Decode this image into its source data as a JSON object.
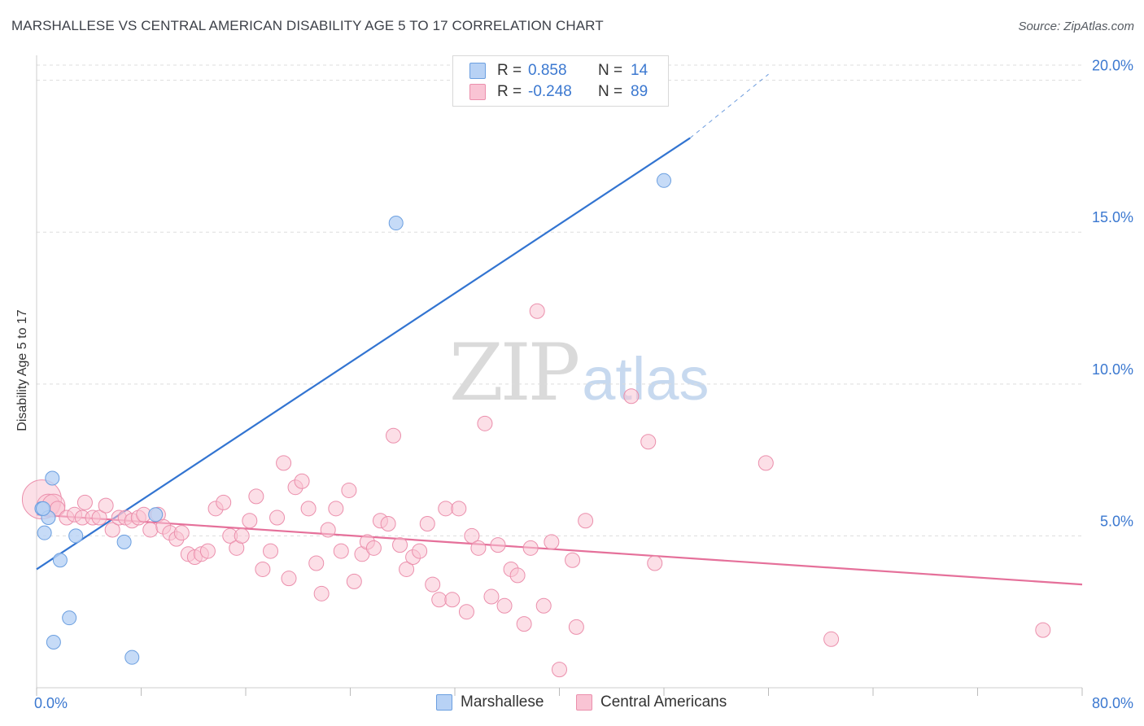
{
  "header": {
    "title": "MARSHALLESE VS CENTRAL AMERICAN DISABILITY AGE 5 TO 17 CORRELATION CHART",
    "source": "Source: ZipAtlas.com"
  },
  "watermark": {
    "zip": "ZIP",
    "atlas": "atlas"
  },
  "legend": {
    "rows": [
      {
        "r_label": "R =",
        "r_value": "0.858",
        "n_label": "N =",
        "n_value": "14"
      },
      {
        "r_label": "R =",
        "r_value": "-0.248",
        "n_label": "N =",
        "n_value": "89"
      }
    ]
  },
  "bottom_legend": {
    "items": [
      "Marshallese",
      "Central Americans"
    ]
  },
  "colors": {
    "marshallese_fill": "#b8d2f5",
    "marshallese_stroke": "#6b9fe0",
    "marshallese_line": "#3274d1",
    "central_fill": "#f9c4d4",
    "central_stroke": "#eb8fac",
    "central_line": "#e5709a",
    "tick_label": "#3b78d0",
    "grid": "#dddddd"
  },
  "chart_data": {
    "type": "scatter",
    "title": "MARSHALLESE VS CENTRAL AMERICAN DISABILITY AGE 5 TO 17 CORRELATION CHART",
    "xlabel": "",
    "ylabel": "Disability Age 5 to 17",
    "xlim": [
      0,
      80
    ],
    "ylim": [
      0,
      20.5
    ],
    "x_tick_labels": [
      "0.0%",
      "80.0%"
    ],
    "y_ticks": [
      5,
      10,
      15,
      20
    ],
    "y_tick_labels": [
      "5.0%",
      "10.0%",
      "15.0%",
      "20.0%"
    ],
    "grid": true,
    "legend_position": "top-center",
    "series": [
      {
        "name": "Marshallese",
        "r": 0.858,
        "n": 14,
        "points": [
          [
            0.4,
            5.9
          ],
          [
            0.6,
            5.1
          ],
          [
            0.9,
            5.6
          ],
          [
            1.2,
            6.9
          ],
          [
            1.3,
            1.5
          ],
          [
            1.8,
            4.2
          ],
          [
            2.5,
            2.3
          ],
          [
            3.0,
            5.0
          ],
          [
            6.7,
            4.8
          ],
          [
            7.3,
            1.0
          ],
          [
            9.1,
            5.7
          ],
          [
            27.5,
            15.3
          ],
          [
            48.0,
            16.7
          ],
          [
            0.5,
            5.9
          ]
        ],
        "trend": {
          "x": [
            0,
            50
          ],
          "y": [
            3.9,
            18.1
          ],
          "extended": {
            "x": [
              50,
              56
            ],
            "y": [
              18.1,
              20.2
            ]
          }
        }
      },
      {
        "name": "Central Americans",
        "r": -0.248,
        "n": 89,
        "points": [
          [
            0.4,
            6.2
          ],
          [
            0.9,
            6.0
          ],
          [
            1.3,
            6.0
          ],
          [
            1.6,
            5.9
          ],
          [
            2.3,
            5.6
          ],
          [
            2.9,
            5.7
          ],
          [
            3.5,
            5.6
          ],
          [
            3.7,
            6.1
          ],
          [
            4.3,
            5.6
          ],
          [
            4.8,
            5.6
          ],
          [
            5.3,
            6.0
          ],
          [
            5.8,
            5.2
          ],
          [
            6.3,
            5.6
          ],
          [
            6.8,
            5.6
          ],
          [
            7.3,
            5.5
          ],
          [
            7.8,
            5.6
          ],
          [
            8.2,
            5.7
          ],
          [
            8.7,
            5.2
          ],
          [
            9.3,
            5.7
          ],
          [
            9.7,
            5.3
          ],
          [
            10.2,
            5.1
          ],
          [
            10.7,
            4.9
          ],
          [
            11.1,
            5.1
          ],
          [
            11.6,
            4.4
          ],
          [
            12.1,
            4.3
          ],
          [
            12.6,
            4.4
          ],
          [
            13.1,
            4.5
          ],
          [
            13.7,
            5.9
          ],
          [
            14.3,
            6.1
          ],
          [
            14.8,
            5.0
          ],
          [
            15.3,
            4.6
          ],
          [
            15.7,
            5.0
          ],
          [
            16.3,
            5.5
          ],
          [
            16.8,
            6.3
          ],
          [
            17.3,
            3.9
          ],
          [
            17.9,
            4.5
          ],
          [
            18.4,
            5.6
          ],
          [
            18.9,
            7.4
          ],
          [
            19.3,
            3.6
          ],
          [
            19.8,
            6.6
          ],
          [
            20.3,
            6.8
          ],
          [
            20.8,
            5.9
          ],
          [
            21.4,
            4.1
          ],
          [
            21.8,
            3.1
          ],
          [
            22.3,
            5.2
          ],
          [
            22.9,
            5.9
          ],
          [
            23.3,
            4.5
          ],
          [
            23.9,
            6.5
          ],
          [
            24.3,
            3.5
          ],
          [
            24.9,
            4.4
          ],
          [
            25.3,
            4.8
          ],
          [
            25.8,
            4.6
          ],
          [
            26.3,
            5.5
          ],
          [
            26.9,
            5.4
          ],
          [
            27.3,
            8.3
          ],
          [
            27.8,
            4.7
          ],
          [
            28.3,
            3.9
          ],
          [
            28.8,
            4.3
          ],
          [
            29.3,
            4.5
          ],
          [
            29.9,
            5.4
          ],
          [
            30.3,
            3.4
          ],
          [
            30.8,
            2.9
          ],
          [
            31.3,
            5.9
          ],
          [
            31.8,
            2.9
          ],
          [
            32.3,
            5.9
          ],
          [
            32.9,
            2.5
          ],
          [
            33.3,
            5.0
          ],
          [
            33.8,
            4.6
          ],
          [
            34.3,
            8.7
          ],
          [
            34.8,
            3.0
          ],
          [
            35.3,
            4.7
          ],
          [
            35.8,
            2.7
          ],
          [
            36.3,
            3.9
          ],
          [
            36.8,
            3.7
          ],
          [
            37.3,
            2.1
          ],
          [
            37.8,
            4.6
          ],
          [
            38.3,
            12.4
          ],
          [
            38.8,
            2.7
          ],
          [
            39.4,
            4.8
          ],
          [
            40.0,
            0.6
          ],
          [
            41.0,
            4.2
          ],
          [
            41.3,
            2.0
          ],
          [
            42.0,
            5.5
          ],
          [
            45.5,
            9.6
          ],
          [
            46.8,
            8.1
          ],
          [
            47.3,
            4.1
          ],
          [
            55.8,
            7.4
          ],
          [
            60.8,
            1.6
          ],
          [
            77.0,
            1.9
          ]
        ],
        "trend": {
          "x": [
            0,
            80
          ],
          "y": [
            5.7,
            3.4
          ]
        }
      }
    ]
  }
}
